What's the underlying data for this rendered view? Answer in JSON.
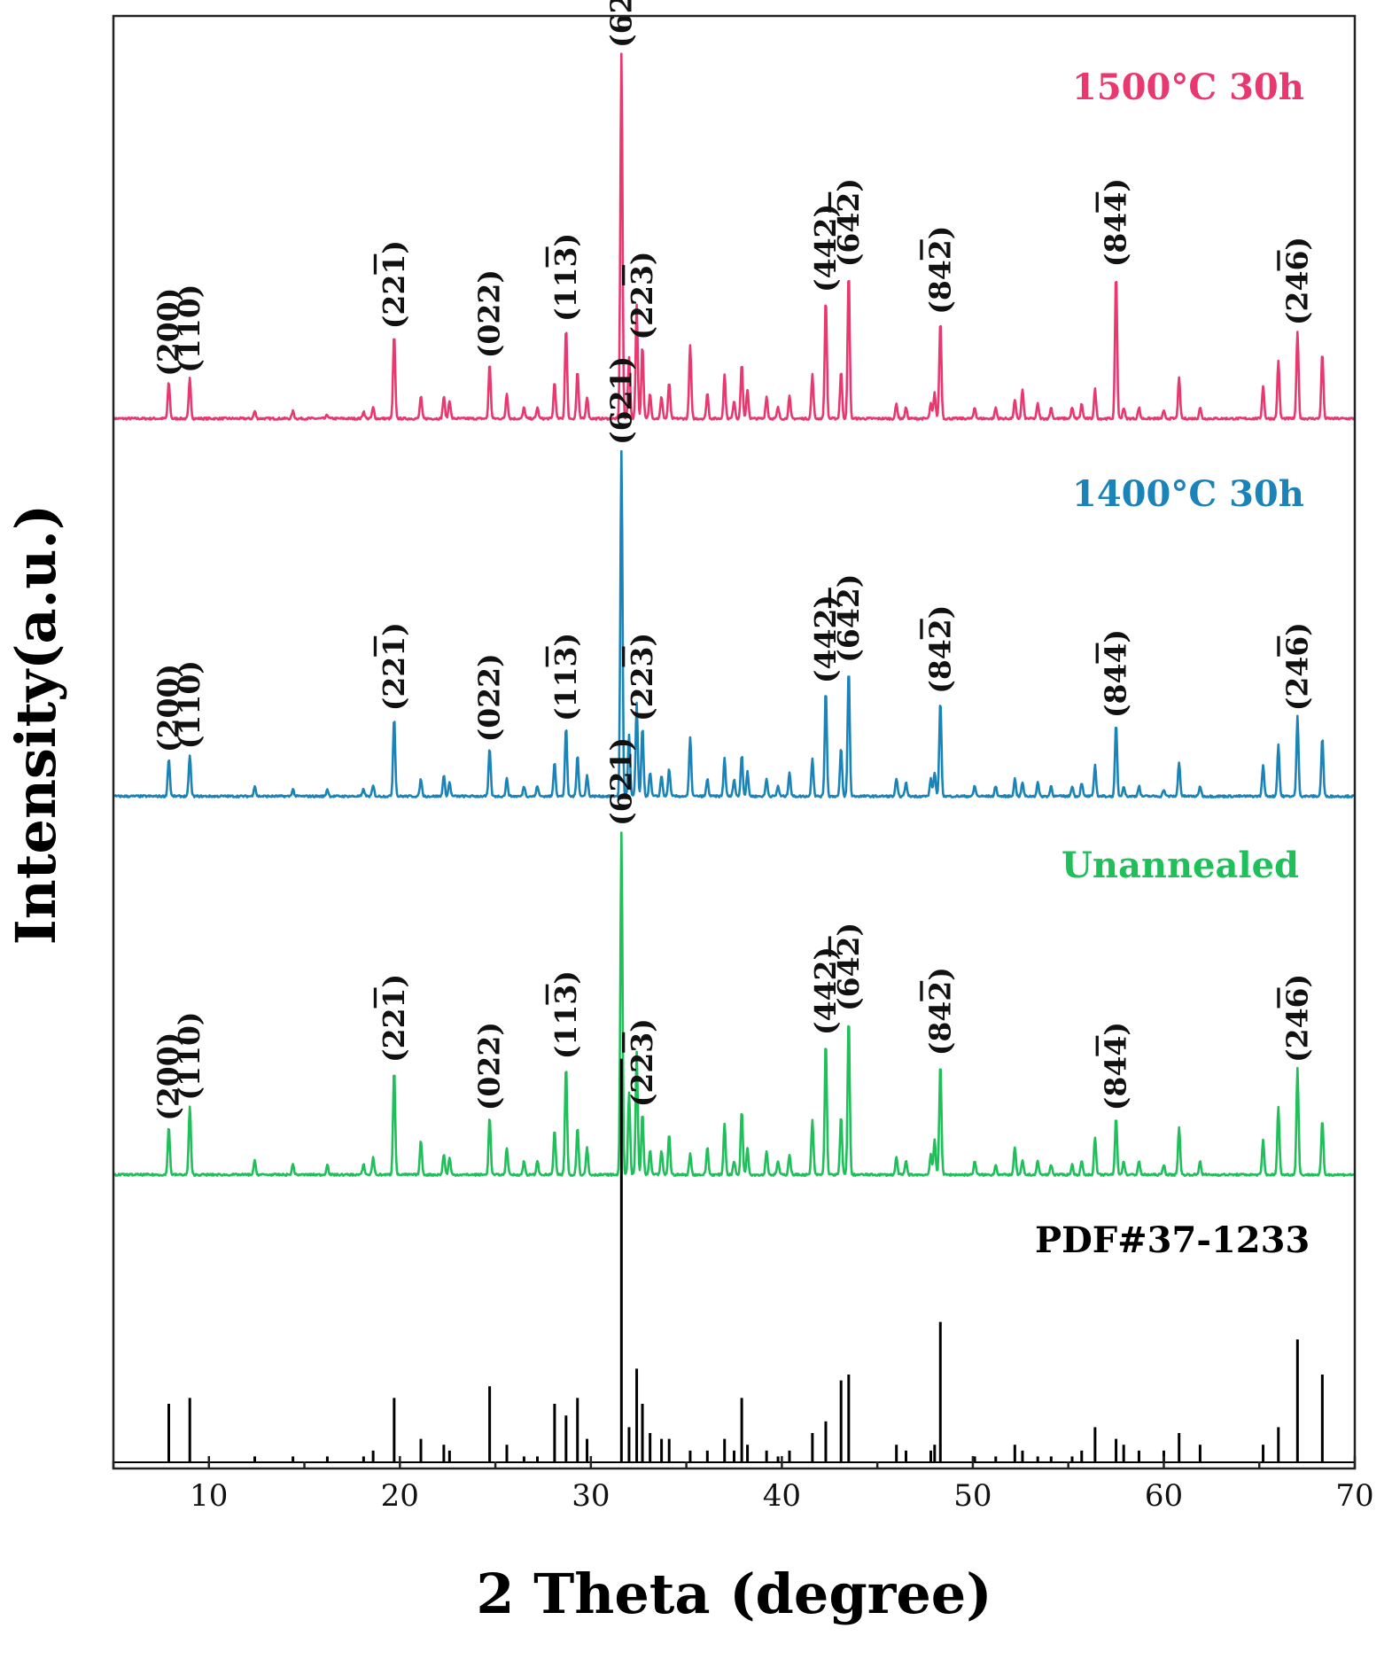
{
  "chart_data": {
    "type": "line",
    "title": "",
    "xlabel": "2 Theta (degree)",
    "ylabel": "Intensity(a.u.)",
    "xlim": [
      5,
      70
    ],
    "xticks": [
      10,
      20,
      30,
      40,
      50,
      60,
      70
    ],
    "tick_labels": [
      "10",
      "20",
      "30",
      "40",
      "50",
      "60",
      "70"
    ],
    "colors": {
      "s1500": "#e8386f",
      "s1400": "#1a84b8",
      "unannealed": "#1fbf5a",
      "reference": "#000000"
    },
    "peaks": [
      {
        "x": 7.9,
        "hkl": "(200)",
        "h": [
          0.1,
          0.11,
          0.14
        ],
        "ref": 0.1
      },
      {
        "x": 9.0,
        "hkl": "(110)",
        "h": [
          0.11,
          0.12,
          0.2
        ],
        "ref": 0.11
      },
      {
        "x": 12.4,
        "h": [
          0.02,
          0.03,
          0.04
        ],
        "ref": 0.01
      },
      {
        "x": 14.4,
        "h": [
          0.02,
          0.02,
          0.03
        ],
        "ref": 0.01
      },
      {
        "x": 16.2,
        "h": [
          0.01,
          0.02,
          0.03
        ],
        "ref": 0.01
      },
      {
        "x": 18.1,
        "h": [
          0.02,
          0.02,
          0.03
        ],
        "ref": 0.01
      },
      {
        "x": 18.6,
        "h": [
          0.03,
          0.03,
          0.05
        ],
        "ref": 0.02
      },
      {
        "x": 19.7,
        "hkl": "(22-1)",
        "h": [
          0.23,
          0.23,
          0.31
        ],
        "ref": 0.11
      },
      {
        "x": 21.1,
        "h": [
          0.06,
          0.05,
          0.1
        ],
        "ref": 0.04
      },
      {
        "x": 22.3,
        "h": [
          0.06,
          0.06,
          0.06
        ],
        "ref": 0.03
      },
      {
        "x": 22.6,
        "h": [
          0.05,
          0.04,
          0.05
        ],
        "ref": 0.02
      },
      {
        "x": 24.7,
        "hkl": "(022)",
        "h": [
          0.15,
          0.14,
          0.17
        ],
        "ref": 0.13
      },
      {
        "x": 25.6,
        "h": [
          0.07,
          0.05,
          0.08
        ],
        "ref": 0.03
      },
      {
        "x": 26.5,
        "h": [
          0.03,
          0.03,
          0.04
        ],
        "ref": 0.01
      },
      {
        "x": 27.2,
        "h": [
          0.03,
          0.03,
          0.04
        ],
        "ref": 0.01
      },
      {
        "x": 28.1,
        "h": [
          0.1,
          0.1,
          0.13
        ],
        "ref": 0.1
      },
      {
        "x": 28.7,
        "hkl": "(11-3)",
        "h": [
          0.25,
          0.2,
          0.32
        ],
        "ref": 0.08
      },
      {
        "x": 29.3,
        "h": [
          0.13,
          0.12,
          0.14
        ],
        "ref": 0.11
      },
      {
        "x": 29.8,
        "h": [
          0.06,
          0.06,
          0.08
        ],
        "ref": 0.04
      },
      {
        "x": 31.6,
        "hkl": "(621)",
        "h": [
          1.0,
          1.0,
          1.0
        ],
        "ref": 0.69
      },
      {
        "x": 32.0,
        "h": [
          0.17,
          0.18,
          0.24
        ],
        "ref": 0.06
      },
      {
        "x": 32.4,
        "h": [
          0.31,
          0.27,
          0.36
        ],
        "ref": 0.16
      },
      {
        "x": 32.7,
        "hkl": "(22-3)",
        "h": [
          0.2,
          0.2,
          0.18
        ],
        "ref": 0.1
      },
      {
        "x": 33.1,
        "h": [
          0.07,
          0.07,
          0.07
        ],
        "ref": 0.05
      },
      {
        "x": 33.7,
        "h": [
          0.06,
          0.06,
          0.07
        ],
        "ref": 0.04
      },
      {
        "x": 34.1,
        "h": [
          0.1,
          0.08,
          0.12
        ],
        "ref": 0.04
      },
      {
        "x": 35.2,
        "h": [
          0.2,
          0.17,
          0.06
        ],
        "ref": 0.02
      },
      {
        "x": 36.1,
        "h": [
          0.07,
          0.05,
          0.08
        ],
        "ref": 0.02
      },
      {
        "x": 37.0,
        "h": [
          0.12,
          0.11,
          0.15
        ],
        "ref": 0.04
      },
      {
        "x": 37.5,
        "h": [
          0.05,
          0.05,
          0.04
        ],
        "ref": 0.02
      },
      {
        "x": 37.9,
        "h": [
          0.15,
          0.12,
          0.19
        ],
        "ref": 0.11
      },
      {
        "x": 38.2,
        "h": [
          0.08,
          0.07,
          0.08
        ],
        "ref": 0.03
      },
      {
        "x": 39.2,
        "h": [
          0.06,
          0.05,
          0.07
        ],
        "ref": 0.02
      },
      {
        "x": 39.8,
        "h": [
          0.03,
          0.03,
          0.04
        ],
        "ref": 0.01
      },
      {
        "x": 40.4,
        "h": [
          0.06,
          0.07,
          0.06
        ],
        "ref": 0.02
      },
      {
        "x": 41.6,
        "h": [
          0.12,
          0.11,
          0.16
        ],
        "ref": 0.05
      },
      {
        "x": 42.3,
        "hkl": "(442)",
        "h": [
          0.33,
          0.31,
          0.39
        ],
        "ref": 0.07
      },
      {
        "x": 43.1,
        "h": [
          0.13,
          0.14,
          0.17
        ],
        "ref": 0.14
      },
      {
        "x": 43.5,
        "hkl": "(64-2)",
        "h": [
          0.4,
          0.37,
          0.46
        ],
        "ref": 0.15
      },
      {
        "x": 46.0,
        "h": [
          0.04,
          0.05,
          0.05
        ],
        "ref": 0.03
      },
      {
        "x": 46.5,
        "h": [
          0.03,
          0.04,
          0.04
        ],
        "ref": 0.02
      },
      {
        "x": 47.8,
        "h": [
          0.04,
          0.05,
          0.06
        ],
        "ref": 0.02
      },
      {
        "x": 48.0,
        "h": [
          0.07,
          0.07,
          0.1
        ],
        "ref": 0.03
      },
      {
        "x": 48.3,
        "hkl": "(84-2)",
        "h": [
          0.27,
          0.28,
          0.33
        ],
        "ref": 0.24
      },
      {
        "x": 50.1,
        "h": [
          0.03,
          0.03,
          0.04
        ],
        "ref": 0.01
      },
      {
        "x": 51.2,
        "h": [
          0.03,
          0.03,
          0.03
        ],
        "ref": 0.01
      },
      {
        "x": 52.2,
        "h": [
          0.05,
          0.05,
          0.08
        ],
        "ref": 0.03
      },
      {
        "x": 52.6,
        "h": [
          0.08,
          0.04,
          0.04
        ],
        "ref": 0.02
      },
      {
        "x": 53.4,
        "h": [
          0.04,
          0.04,
          0.04
        ],
        "ref": 0.01
      },
      {
        "x": 54.1,
        "h": [
          0.03,
          0.03,
          0.03
        ],
        "ref": 0.01
      },
      {
        "x": 55.2,
        "h": [
          0.03,
          0.03,
          0.03
        ],
        "ref": 0.01
      },
      {
        "x": 55.7,
        "h": [
          0.04,
          0.04,
          0.04
        ],
        "ref": 0.02
      },
      {
        "x": 56.4,
        "h": [
          0.08,
          0.09,
          0.11
        ],
        "ref": 0.06
      },
      {
        "x": 57.5,
        "hkl": "(84-4)",
        "h": [
          0.4,
          0.21,
          0.17
        ],
        "ref": 0.04
      },
      {
        "x": 57.9,
        "h": [
          0.03,
          0.03,
          0.04
        ],
        "ref": 0.03
      },
      {
        "x": 58.7,
        "h": [
          0.03,
          0.03,
          0.04
        ],
        "ref": 0.02
      },
      {
        "x": 60.0,
        "h": [
          0.02,
          0.02,
          0.03
        ],
        "ref": 0.02
      },
      {
        "x": 60.8,
        "h": [
          0.11,
          0.1,
          0.14
        ],
        "ref": 0.05
      },
      {
        "x": 61.9,
        "h": [
          0.03,
          0.03,
          0.04
        ],
        "ref": 0.03
      },
      {
        "x": 65.2,
        "h": [
          0.09,
          0.09,
          0.1
        ],
        "ref": 0.03
      },
      {
        "x": 66.0,
        "h": [
          0.16,
          0.15,
          0.2
        ],
        "ref": 0.06
      },
      {
        "x": 67.0,
        "hkl": "(24-6)",
        "h": [
          0.24,
          0.23,
          0.31
        ],
        "ref": 0.21
      },
      {
        "x": 68.3,
        "h": [
          0.18,
          0.17,
          0.16
        ],
        "ref": 0.15
      }
    ],
    "series": [
      {
        "name": "1500°C 30h",
        "label": "1500°C 30h",
        "color_key": "s1500"
      },
      {
        "name": "1400°C 30h",
        "label": "1400°C 30h",
        "color_key": "s1400"
      },
      {
        "name": "Unannealed",
        "label": "Unannealed",
        "color_key": "unannealed"
      },
      {
        "name": "PDF#37-1233",
        "label": "PDF#37-1233",
        "color_key": "reference",
        "type": "stick"
      }
    ]
  }
}
